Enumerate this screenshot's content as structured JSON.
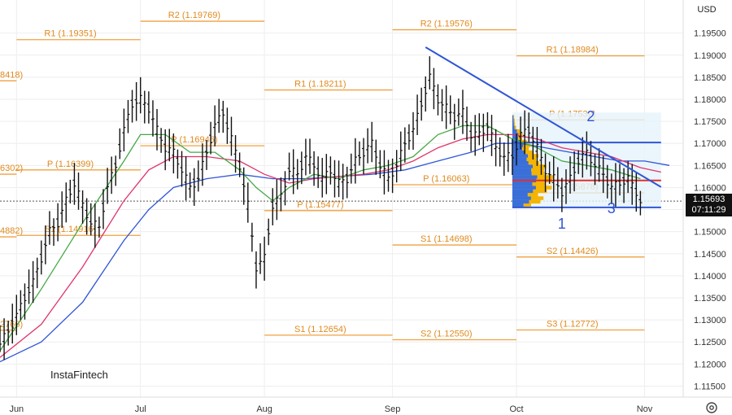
{
  "currency": "USD",
  "logo_text": "InstaFintech",
  "price_tag": {
    "price": "1.15693",
    "time": "07:11:29"
  },
  "chart_data": {
    "type": "ohlc",
    "ylim": [
      1.1125,
      1.2025
    ],
    "y_ticks": [
      "1.19500",
      "1.19000",
      "1.18500",
      "1.18000",
      "1.17500",
      "1.17000",
      "1.16500",
      "1.16000",
      "1.15500",
      "1.15000",
      "1.14500",
      "1.14000",
      "1.13500",
      "1.13000",
      "1.12500",
      "1.12000",
      "1.11500"
    ],
    "x_labels": [
      "Jun",
      "Jul",
      "Aug",
      "Sep",
      "Oct",
      "Nov"
    ],
    "x_label_days": [
      4,
      34,
      64,
      95,
      125,
      156
    ],
    "last_price": 1.15693,
    "pivot_levels": [
      {
        "label": "R2 (1.19769)",
        "value": 1.19769,
        "period": "Jul"
      },
      {
        "label": "R1 (1.19351)",
        "value": 1.19351,
        "period": "Jun"
      },
      {
        "label": "8418)",
        "value": 1.18418,
        "period": "May"
      },
      {
        "label": "R2 (1.19576)",
        "value": 1.19576,
        "period": "Sep"
      },
      {
        "label": "R1 (1.18984)",
        "value": 1.18984,
        "period": "Oct"
      },
      {
        "label": "R1 (1.18211)",
        "value": 1.18211,
        "period": "Aug"
      },
      {
        "label": "P (1.17532)",
        "value": 1.17532,
        "period": "Oct"
      },
      {
        "label": "P (1.16946)",
        "value": 1.16946,
        "period": "Jul"
      },
      {
        "label": "P (1.16399)",
        "value": 1.16399,
        "period": "Jun"
      },
      {
        "label": "6302)",
        "value": 1.16302,
        "period": "May"
      },
      {
        "label": "P (1.16063)",
        "value": 1.16063,
        "period": "Sep"
      },
      {
        "label": "S1 (1.15878)",
        "value": 1.15878,
        "period": "Oct"
      },
      {
        "label": "P (1.15477)",
        "value": 1.15477,
        "period": "Aug"
      },
      {
        "label": "4882)",
        "value": 1.14882,
        "period": "May"
      },
      {
        "label": "S1 (1.14916)",
        "value": 1.14916,
        "period": "Jun"
      },
      {
        "label": "S1 (1.14698)",
        "value": 1.14698,
        "period": "Sep"
      },
      {
        "label": "S2 (1.14426)",
        "value": 1.14426,
        "period": "Oct"
      },
      {
        "label": "2766)",
        "value": 1.12766,
        "period": "May"
      },
      {
        "label": "S3 (1.12772)",
        "value": 1.12772,
        "period": "Oct"
      },
      {
        "label": "S1 (1.12654)",
        "value": 1.12654,
        "period": "Aug"
      },
      {
        "label": "S2 (1.12550)",
        "value": 1.1255,
        "period": "Sep"
      }
    ],
    "wave_labels": [
      "1",
      "2",
      "3"
    ],
    "trendline": {
      "from": {
        "day": 103,
        "price": 1.1918
      },
      "to": {
        "day": 160,
        "price": 1.1601
      }
    },
    "price_path": [
      [
        0,
        1.1245
      ],
      [
        3,
        1.129
      ],
      [
        6,
        1.135
      ],
      [
        8,
        1.1385
      ],
      [
        10,
        1.144
      ],
      [
        12,
        1.15
      ],
      [
        14,
        1.152
      ],
      [
        16,
        1.157
      ],
      [
        18,
        1.161
      ],
      [
        20,
        1.156
      ],
      [
        22,
        1.152
      ],
      [
        24,
        1.151
      ],
      [
        26,
        1.16
      ],
      [
        28,
        1.165
      ],
      [
        30,
        1.173
      ],
      [
        32,
        1.179
      ],
      [
        34,
        1.18
      ],
      [
        36,
        1.178
      ],
      [
        38,
        1.173
      ],
      [
        40,
        1.169
      ],
      [
        42,
        1.168
      ],
      [
        44,
        1.164
      ],
      [
        46,
        1.16
      ],
      [
        48,
        1.162
      ],
      [
        50,
        1.168
      ],
      [
        52,
        1.174
      ],
      [
        54,
        1.177
      ],
      [
        56,
        1.171
      ],
      [
        58,
        1.165
      ],
      [
        60,
        1.156
      ],
      [
        62,
        1.142
      ],
      [
        64,
        1.144
      ],
      [
        66,
        1.156
      ],
      [
        68,
        1.158
      ],
      [
        70,
        1.164
      ],
      [
        72,
        1.163
      ],
      [
        74,
        1.167
      ],
      [
        76,
        1.165
      ],
      [
        78,
        1.162
      ],
      [
        80,
        1.164
      ],
      [
        82,
        1.161
      ],
      [
        84,
        1.162
      ],
      [
        86,
        1.166
      ],
      [
        88,
        1.168
      ],
      [
        90,
        1.17
      ],
      [
        92,
        1.165
      ],
      [
        94,
        1.162
      ],
      [
        96,
        1.165
      ],
      [
        98,
        1.17
      ],
      [
        100,
        1.173
      ],
      [
        102,
        1.179
      ],
      [
        104,
        1.185
      ],
      [
        106,
        1.18
      ],
      [
        108,
        1.178
      ],
      [
        110,
        1.176
      ],
      [
        112,
        1.177
      ],
      [
        114,
        1.172
      ],
      [
        116,
        1.172
      ],
      [
        118,
        1.174
      ],
      [
        120,
        1.169
      ],
      [
        122,
        1.167
      ],
      [
        124,
        1.167
      ],
      [
        126,
        1.172
      ],
      [
        128,
        1.173
      ],
      [
        130,
        1.169
      ],
      [
        132,
        1.164
      ],
      [
        134,
        1.162
      ],
      [
        136,
        1.159
      ],
      [
        138,
        1.162
      ],
      [
        140,
        1.166
      ],
      [
        142,
        1.168
      ],
      [
        144,
        1.165
      ],
      [
        146,
        1.163
      ],
      [
        148,
        1.16
      ],
      [
        150,
        1.161
      ],
      [
        152,
        1.162
      ],
      [
        154,
        1.159
      ],
      [
        155,
        1.1569
      ]
    ],
    "ema_fast": [
      [
        0,
        1.123
      ],
      [
        10,
        1.137
      ],
      [
        20,
        1.152
      ],
      [
        30,
        1.166
      ],
      [
        34,
        1.172
      ],
      [
        40,
        1.172
      ],
      [
        46,
        1.168
      ],
      [
        52,
        1.168
      ],
      [
        58,
        1.164
      ],
      [
        62,
        1.16
      ],
      [
        66,
        1.157
      ],
      [
        70,
        1.16
      ],
      [
        76,
        1.163
      ],
      [
        82,
        1.162
      ],
      [
        88,
        1.164
      ],
      [
        94,
        1.165
      ],
      [
        100,
        1.167
      ],
      [
        106,
        1.172
      ],
      [
        112,
        1.174
      ],
      [
        118,
        1.174
      ],
      [
        124,
        1.171
      ],
      [
        130,
        1.169
      ],
      [
        136,
        1.166
      ],
      [
        142,
        1.165
      ],
      [
        148,
        1.164
      ],
      [
        155,
        1.162
      ]
    ],
    "ema_mid": [
      [
        0,
        1.1215
      ],
      [
        10,
        1.129
      ],
      [
        20,
        1.142
      ],
      [
        30,
        1.157
      ],
      [
        36,
        1.164
      ],
      [
        42,
        1.167
      ],
      [
        50,
        1.167
      ],
      [
        58,
        1.166
      ],
      [
        64,
        1.163
      ],
      [
        70,
        1.161
      ],
      [
        76,
        1.162
      ],
      [
        82,
        1.1625
      ],
      [
        88,
        1.163
      ],
      [
        94,
        1.164
      ],
      [
        100,
        1.166
      ],
      [
        106,
        1.169
      ],
      [
        112,
        1.171
      ],
      [
        118,
        1.172
      ],
      [
        124,
        1.172
      ],
      [
        130,
        1.171
      ],
      [
        136,
        1.169
      ],
      [
        142,
        1.168
      ],
      [
        148,
        1.167
      ],
      [
        155,
        1.1645
      ],
      [
        160,
        1.1635
      ]
    ],
    "ema_slow": [
      [
        0,
        1.1205
      ],
      [
        10,
        1.125
      ],
      [
        20,
        1.134
      ],
      [
        30,
        1.148
      ],
      [
        36,
        1.155
      ],
      [
        42,
        1.16
      ],
      [
        50,
        1.162
      ],
      [
        58,
        1.163
      ],
      [
        66,
        1.162
      ],
      [
        74,
        1.162
      ],
      [
        82,
        1.1625
      ],
      [
        90,
        1.163
      ],
      [
        98,
        1.164
      ],
      [
        106,
        1.166
      ],
      [
        114,
        1.168
      ],
      [
        120,
        1.17
      ],
      [
        126,
        1.17
      ],
      [
        132,
        1.169
      ],
      [
        138,
        1.168
      ],
      [
        144,
        1.167
      ],
      [
        150,
        1.166
      ],
      [
        156,
        1.166
      ],
      [
        162,
        1.165
      ]
    ]
  }
}
